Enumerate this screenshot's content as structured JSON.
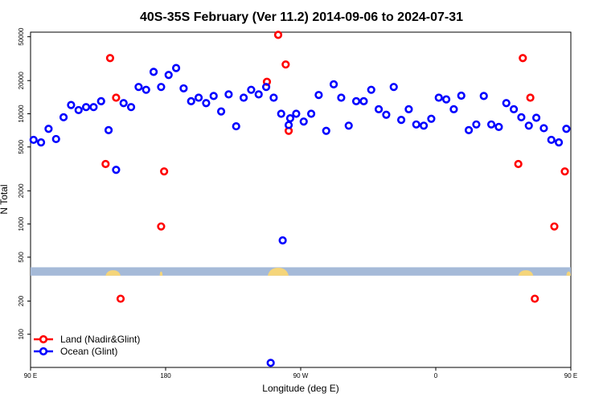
{
  "chart_data": {
    "type": "scatter",
    "title": "40S-35S February (Ver 11.2)   2014-09-06 to 2024-07-31",
    "xlabel": "Longitude (deg E)",
    "ylabel": "N Total",
    "y_scale": "log",
    "xlim": [
      90,
      450
    ],
    "ylim": [
      50,
      55000
    ],
    "x_ticks": [
      {
        "value": 90,
        "label": "90 E"
      },
      {
        "value": 180,
        "label": "180"
      },
      {
        "value": 270,
        "label": "90 W"
      },
      {
        "value": 360,
        "label": "0"
      },
      {
        "value": 450,
        "label": "90 E"
      },
      {
        "value": 540,
        "label": "180"
      }
    ],
    "y_ticks": [
      {
        "value": 100,
        "label": "100"
      },
      {
        "value": 200,
        "label": "200"
      },
      {
        "value": 500,
        "label": "500"
      },
      {
        "value": 1000,
        "label": "1000"
      },
      {
        "value": 2000,
        "label": "2000"
      },
      {
        "value": 5000,
        "label": "5000"
      },
      {
        "value": 10000,
        "label": "10000"
      },
      {
        "value": 20000,
        "label": "20000"
      },
      {
        "value": 50000,
        "label": "50000"
      }
    ],
    "land_band": {
      "y_range": [
        340,
        405
      ],
      "color": "#a5bad8",
      "land_color": "#f5d57a"
    },
    "legend_position": "bottom-left",
    "series": [
      {
        "name": "Land (Nadir&Glint)",
        "color": "#ff0000",
        "x": [
          140,
          143,
          147,
          150,
          177,
          179,
          247.5,
          255,
          260,
          262,
          415,
          418,
          423,
          426,
          439,
          446
        ],
        "y": [
          3500,
          32000,
          14000,
          210,
          950,
          3000,
          19500,
          52000,
          28000,
          7000,
          3500,
          32000,
          14000,
          210,
          950,
          3000
        ]
      },
      {
        "name": "Ocean (Glint)",
        "color": "#0000ff",
        "x": [
          92,
          97,
          102,
          107,
          112,
          117,
          122,
          127,
          132,
          137,
          142,
          147,
          152,
          157,
          162,
          167,
          172,
          177,
          182,
          187,
          192,
          197,
          202,
          207,
          212,
          217,
          222,
          227,
          232,
          237,
          242,
          247,
          252,
          257,
          262,
          267,
          272,
          277,
          282,
          287,
          292,
          297,
          302,
          307,
          312,
          317,
          322,
          327,
          332,
          337,
          342,
          347,
          352,
          357,
          362,
          367,
          372,
          377,
          382,
          387,
          392,
          397,
          402,
          407,
          412,
          417,
          422,
          427,
          432,
          437,
          442,
          447,
          250,
          258,
          263
        ],
        "y": [
          5800,
          5500,
          7300,
          5900,
          9300,
          12000,
          10800,
          11500,
          11500,
          13000,
          7100,
          3100,
          12500,
          11500,
          17500,
          16500,
          24000,
          17500,
          22500,
          26000,
          17000,
          13000,
          14000,
          12500,
          14500,
          10500,
          15000,
          7700,
          14000,
          16500,
          15000,
          17500,
          14000,
          10000,
          7900,
          10000,
          8500,
          10000,
          14800,
          7000,
          18500,
          14000,
          7800,
          13000,
          13000,
          16500,
          11000,
          9800,
          17500,
          8800,
          11000,
          8000,
          7800,
          9000,
          14000,
          13500,
          11000,
          14600,
          7100,
          8000,
          14500,
          8000,
          7600,
          12500,
          11000,
          9300,
          7800,
          9200,
          7400,
          5800,
          5500,
          7300,
          55,
          710,
          9100
        ]
      }
    ]
  }
}
